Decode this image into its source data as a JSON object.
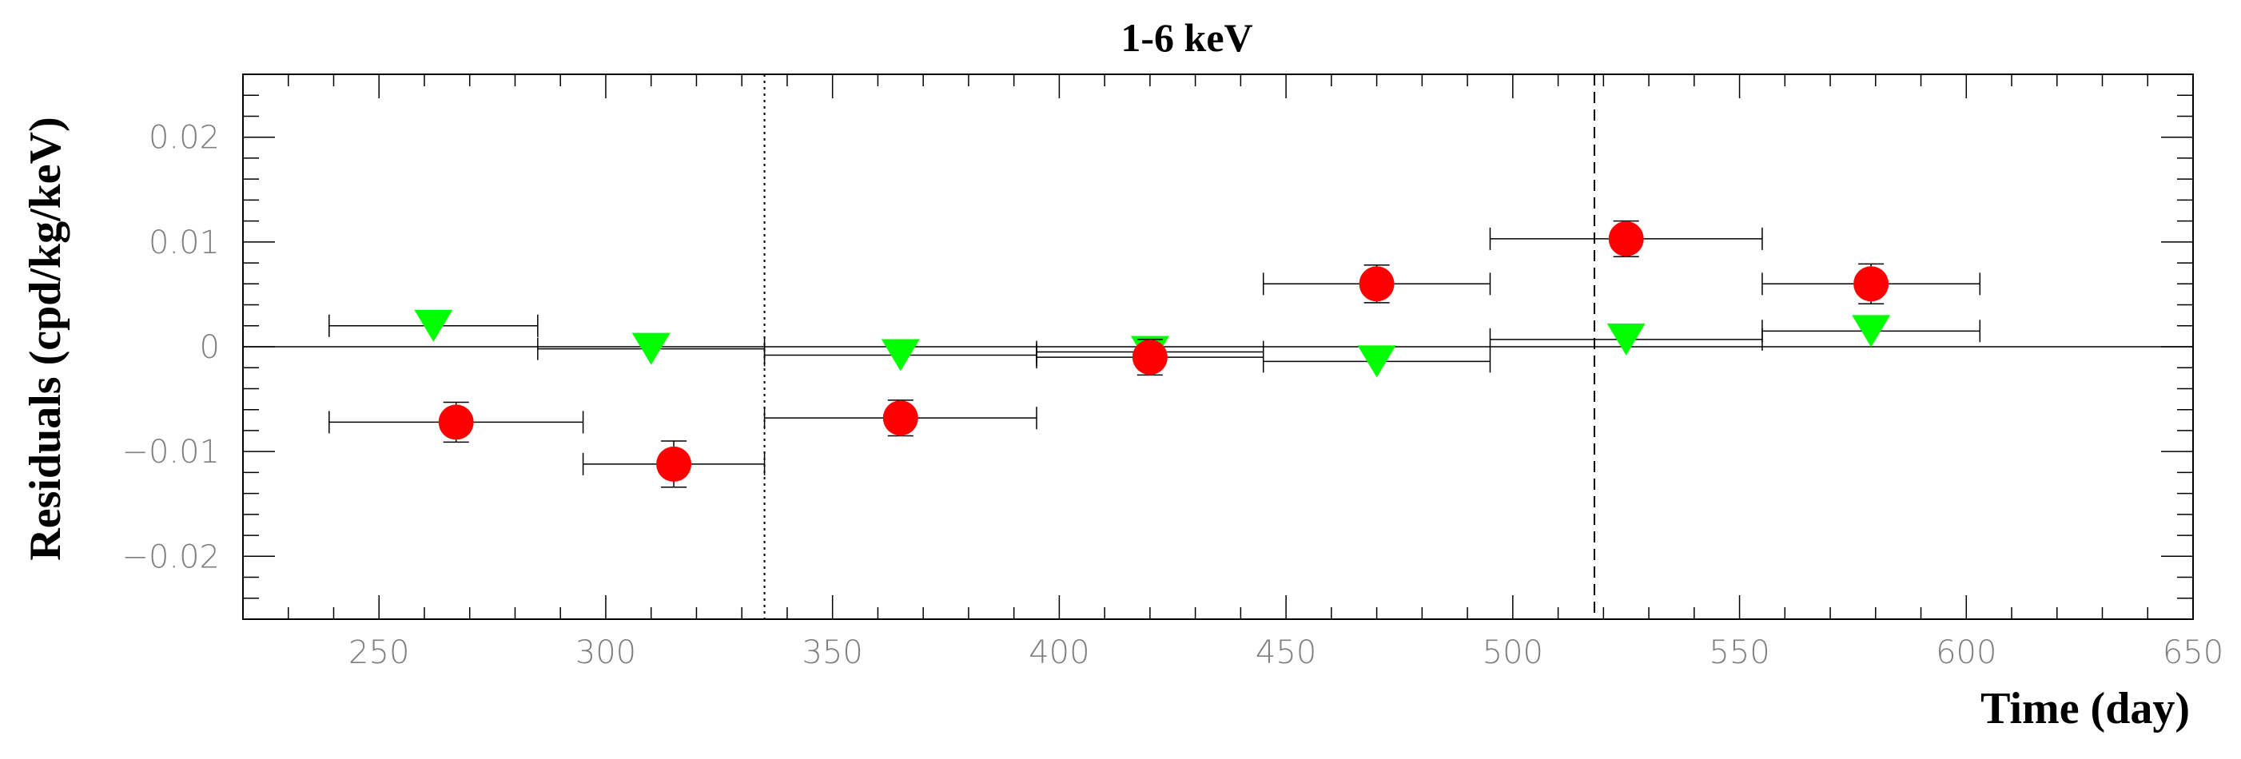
{
  "chart_data": {
    "type": "scatter",
    "title": "1-6 keV",
    "xlabel": "Time (day)",
    "ylabel": "Residuals (cpd/kg/keV)",
    "xlim": [
      220,
      650
    ],
    "ylim": [
      -0.026,
      0.026
    ],
    "x_ticks": [
      250,
      300,
      350,
      400,
      450,
      500,
      550,
      600,
      650
    ],
    "x_tick_labels": [
      "250",
      "300",
      "350",
      "400",
      "450",
      "500",
      "550",
      "600",
      "650"
    ],
    "y_ticks": [
      -0.02,
      -0.01,
      0,
      0.01,
      0.02
    ],
    "y_tick_labels": [
      "−0.02",
      "−0.01",
      "0",
      "0.01",
      "0.02"
    ],
    "grid": false,
    "zero_line": 0,
    "vertical_lines": [
      {
        "x": 335,
        "style": "dotted"
      },
      {
        "x": 518,
        "style": "dashed"
      }
    ],
    "series": [
      {
        "marker": "circle",
        "color": "#ff0000",
        "points": [
          {
            "x": 267,
            "y": -0.0072,
            "xmin": 239,
            "xmax": 295,
            "yerr": 0.0019
          },
          {
            "x": 315,
            "y": -0.0112,
            "xmin": 295,
            "xmax": 335,
            "yerr": 0.0022
          },
          {
            "x": 365,
            "y": -0.0068,
            "xmin": 335,
            "xmax": 395,
            "yerr": 0.0017
          },
          {
            "x": 420,
            "y": -0.001,
            "xmin": 395,
            "xmax": 445,
            "yerr": 0.0017
          },
          {
            "x": 470,
            "y": 0.006,
            "xmin": 445,
            "xmax": 495,
            "yerr": 0.0018
          },
          {
            "x": 525,
            "y": 0.0103,
            "xmin": 495,
            "xmax": 555,
            "yerr": 0.0017
          },
          {
            "x": 579,
            "y": 0.006,
            "xmin": 555,
            "xmax": 603,
            "yerr": 0.0019
          }
        ]
      },
      {
        "marker": "triangle-down",
        "color": "#00ff00",
        "points": [
          {
            "x": 262,
            "y": 0.002,
            "xmin": 239,
            "xmax": 285,
            "yerr": 0
          },
          {
            "x": 310,
            "y": -0.0002,
            "xmin": 285,
            "xmax": 335,
            "yerr": 0
          },
          {
            "x": 365,
            "y": -0.0008,
            "xmin": 335,
            "xmax": 395,
            "yerr": 0
          },
          {
            "x": 420,
            "y": -0.0005,
            "xmin": 395,
            "xmax": 445,
            "yerr": 0
          },
          {
            "x": 470,
            "y": -0.0014,
            "xmin": 445,
            "xmax": 495,
            "yerr": 0
          },
          {
            "x": 525,
            "y": 0.0007,
            "xmin": 495,
            "xmax": 555,
            "yerr": 0
          },
          {
            "x": 579,
            "y": 0.0015,
            "xmin": 555,
            "xmax": 603,
            "yerr": 0
          }
        ]
      }
    ]
  }
}
